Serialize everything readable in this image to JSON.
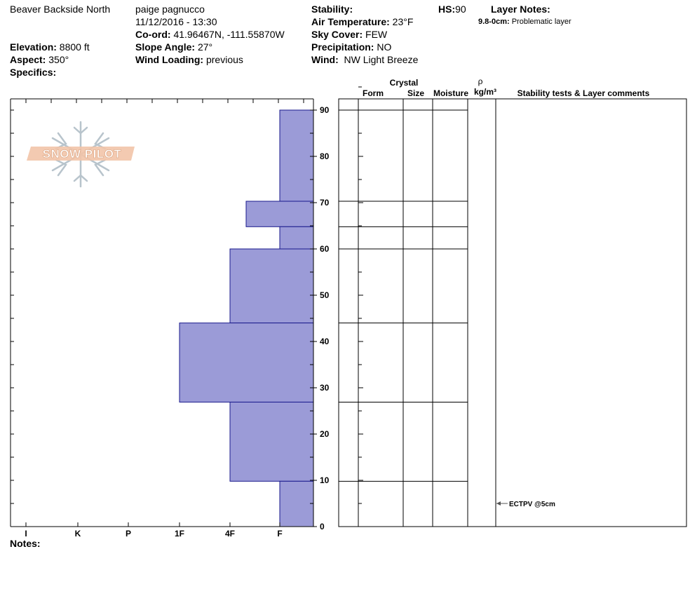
{
  "header": {
    "location": "Beaver Backside North",
    "observer": "paige pagnucco",
    "datetime": "11/12/2016 - 13:30",
    "coord_label": "Co-ord:",
    "coord_value": "41.96467N, -111.55870W",
    "elevation_label": "Elevation:",
    "elevation_value": "8800 ft",
    "aspect_label": "Aspect:",
    "aspect_value": "350°",
    "specifics_label": "Specifics:",
    "slope_label": "Slope Angle:",
    "slope_value": "27°",
    "wind_loading_label": "Wind Loading:",
    "wind_loading_value": "previous",
    "stability_label": "Stability:",
    "stability_value": "",
    "air_temp_label": "Air Temperature:",
    "air_temp_value": "23°F",
    "sky_label": "Sky Cover:",
    "sky_value": "FEW",
    "precip_label": "Precipitation:",
    "precip_value": "NO",
    "wind_label": "Wind:",
    "wind_value": "NW Light Breeze",
    "hs_label": "HS:",
    "hs_value": "90",
    "layer_notes_label": "Layer Notes:",
    "layer_note_depth": "9.8-0cm:",
    "layer_note_text": "Problematic layer",
    "notes_label": "Notes:"
  },
  "logo_text": "SNOW PILOT",
  "columns": {
    "crystal": "Crystal",
    "form": "Form",
    "size": "Size",
    "moisture": "Moisture",
    "rho": "ρ",
    "density_unit": "kg/m³",
    "stability_comments": "Stability tests & Layer comments"
  },
  "stability_test": {
    "label": "ECTPV @5cm",
    "depth": 5
  },
  "colors": {
    "hardness_fill": "#9b9bd7",
    "hardness_stroke": "#1a1a8c"
  },
  "chart_data": {
    "type": "bar",
    "orientation": "horizontal",
    "y_axis": {
      "range": [
        0,
        90
      ],
      "ticks": [
        0,
        10,
        20,
        30,
        40,
        50,
        60,
        70,
        80,
        90
      ]
    },
    "x_axis": {
      "categories": [
        "I",
        "K",
        "P",
        "1F",
        "4F",
        "F"
      ]
    },
    "layer_boundaries": [
      90,
      70.3,
      64.8,
      60,
      44,
      26.9,
      9.8,
      0
    ],
    "layers": [
      {
        "top": 90,
        "bottom": 70.3,
        "hardness": "F"
      },
      {
        "top": 70.3,
        "bottom": 64.8,
        "hardness": "4F+"
      },
      {
        "top": 64.8,
        "bottom": 60,
        "hardness": "F"
      },
      {
        "top": 60,
        "bottom": 44,
        "hardness": "4F"
      },
      {
        "top": 44,
        "bottom": 26.9,
        "hardness": "1F"
      },
      {
        "top": 26.9,
        "bottom": 9.8,
        "hardness": "4F"
      },
      {
        "top": 9.8,
        "bottom": 0,
        "hardness": "F"
      }
    ]
  }
}
